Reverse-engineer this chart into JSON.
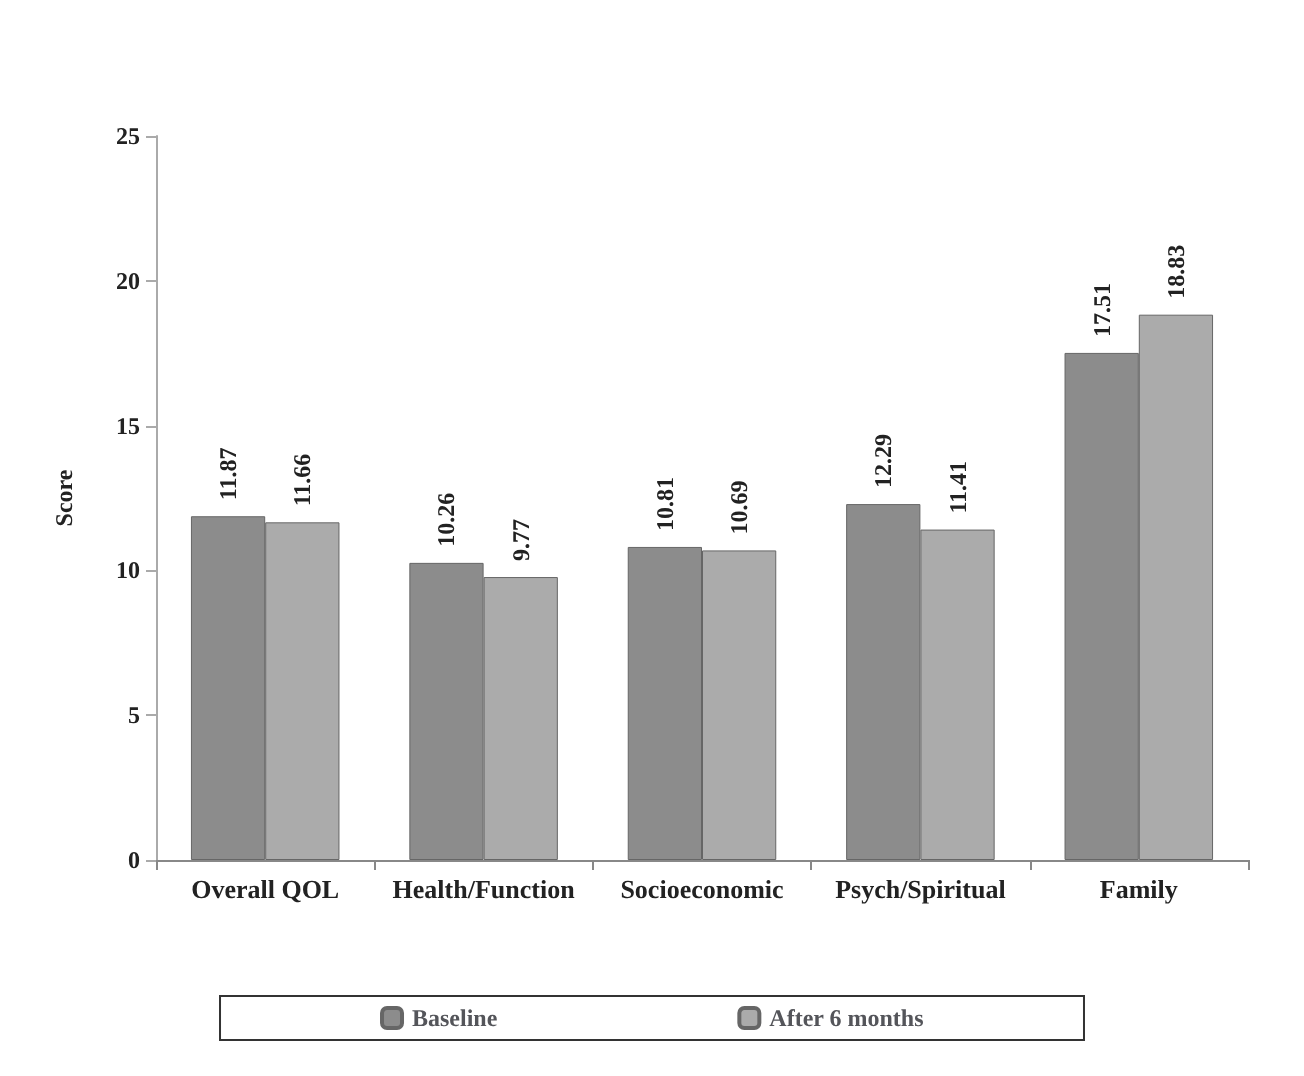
{
  "chart_data": {
    "type": "bar",
    "ylabel": "Score",
    "categories": [
      "Overall QOL",
      "Health/Function",
      "Socioeconomic",
      "Psych/Spiritual",
      "Family"
    ],
    "series": [
      {
        "name": "Baseline",
        "color": "#8c8c8c",
        "values": [
          11.87,
          10.26,
          10.81,
          12.29,
          17.51
        ]
      },
      {
        "name": "After 6 months",
        "color": "#ababab",
        "values": [
          11.66,
          9.77,
          10.69,
          11.41,
          18.83
        ]
      }
    ],
    "ylim": [
      0,
      25
    ],
    "yticks": [
      0,
      5,
      10,
      15,
      20,
      25
    ],
    "grid": false,
    "legend": "bottom",
    "data_labels": true
  }
}
